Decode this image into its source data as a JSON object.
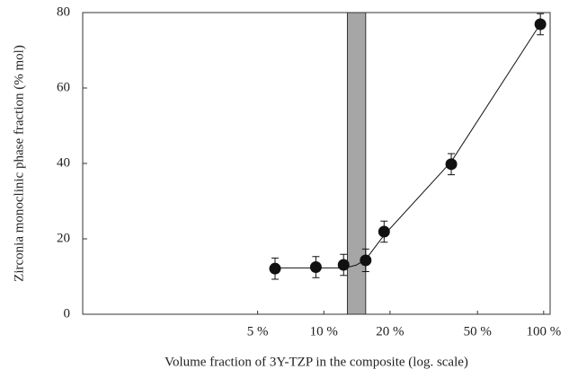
{
  "chart_data": {
    "type": "scatter",
    "xlabel": "Volume fraction of 3Y-TZP in the composite (log. scale)",
    "ylabel": "Zirconia monoclinic phase fraction (% mol)",
    "xscale": "log",
    "xlim": [
      0.8,
      107
    ],
    "ylim": [
      0,
      80
    ],
    "xticks": [
      {
        "value": 5,
        "label": "5 %"
      },
      {
        "value": 10,
        "label": "10 %"
      },
      {
        "value": 20,
        "label": "20 %"
      },
      {
        "value": 50,
        "label": "50 %"
      },
      {
        "value": 100,
        "label": "100 %"
      }
    ],
    "yticks": [
      0,
      20,
      40,
      60,
      80
    ],
    "band": [
      12.8,
      15.5
    ],
    "band_color": "#a6a6a6",
    "series": [
      {
        "color": "#111111",
        "x": [
          6.0,
          9.2,
          12.3,
          15.5,
          18.8,
          38,
          96.6
        ],
        "values": [
          12.1,
          12.5,
          13.1,
          14.3,
          21.9,
          39.8,
          76.9
        ],
        "errors": [
          2.8,
          2.8,
          2.8,
          3.0,
          2.8,
          2.8,
          2.8
        ]
      }
    ],
    "curve": {
      "color": "#111111",
      "x": [
        6.0,
        12.5,
        14,
        15.5,
        18.8,
        38,
        96.6
      ],
      "values": [
        12.3,
        12.3,
        13,
        14.5,
        21,
        40.5,
        77
      ]
    }
  }
}
